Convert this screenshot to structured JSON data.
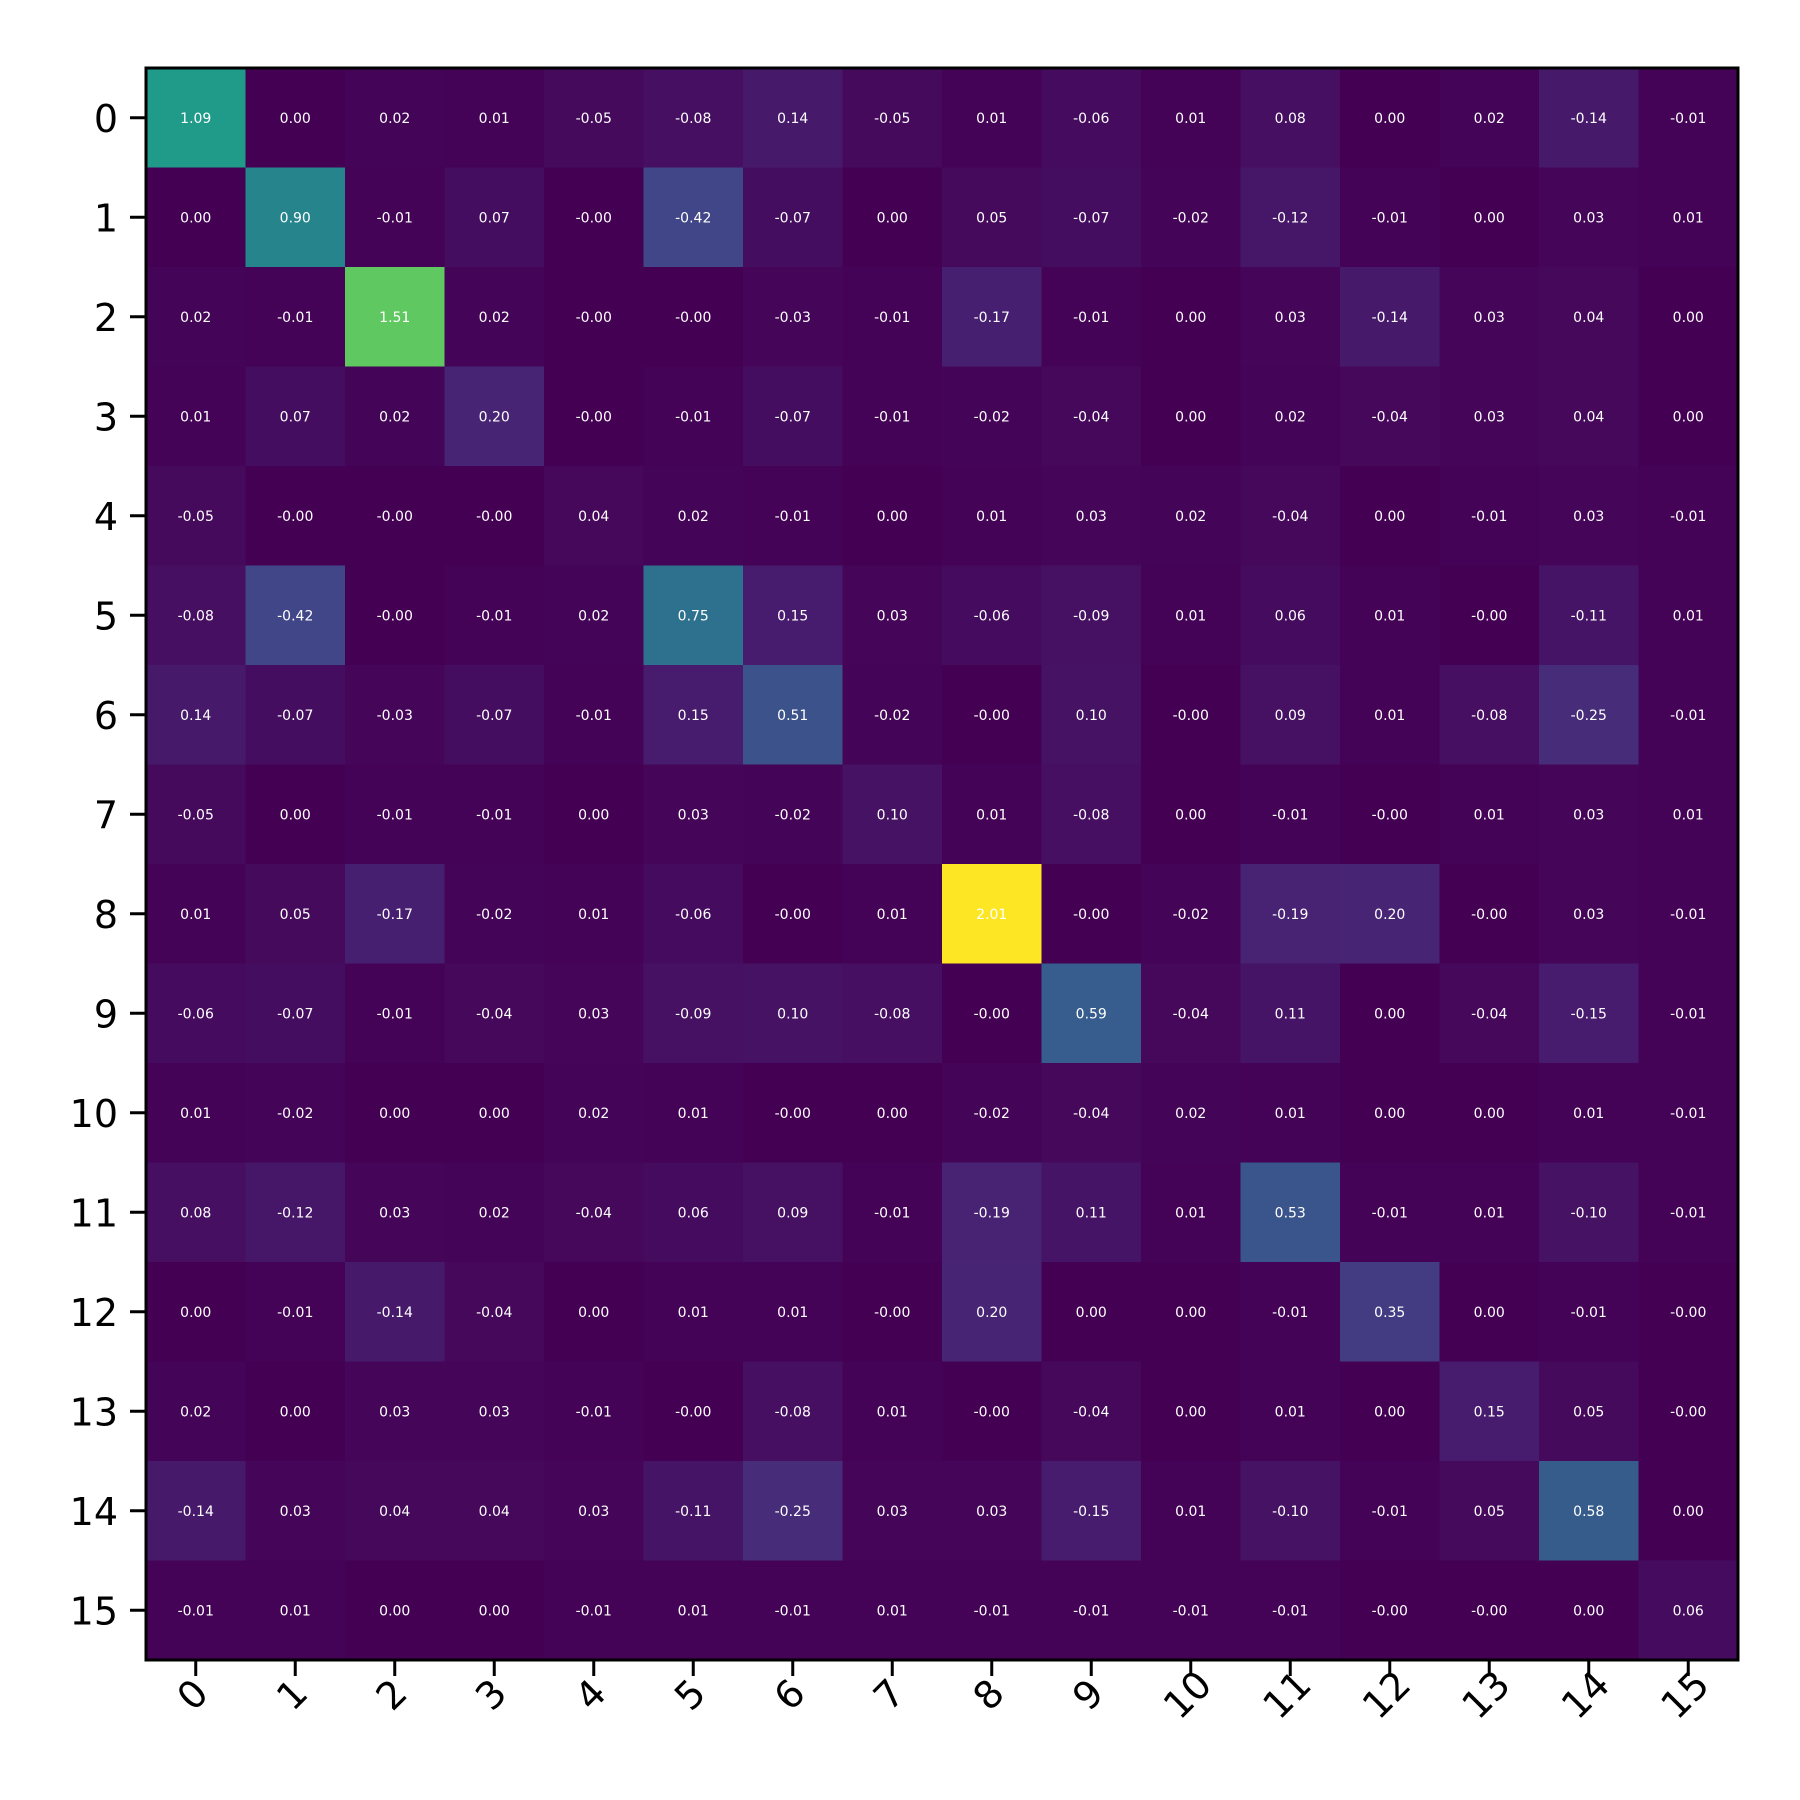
{
  "chart_data": {
    "type": "heatmap",
    "title": "",
    "xlabel": "",
    "ylabel": "",
    "x_tick_labels": [
      "0",
      "1",
      "2",
      "3",
      "4",
      "5",
      "6",
      "7",
      "8",
      "9",
      "10",
      "11",
      "12",
      "13",
      "14",
      "15"
    ],
    "y_tick_labels": [
      "0",
      "1",
      "2",
      "3",
      "4",
      "5",
      "6",
      "7",
      "8",
      "9",
      "10",
      "11",
      "12",
      "13",
      "14",
      "15"
    ],
    "colormap": "viridis",
    "value_range": [
      -0.42,
      2.01
    ],
    "grid": false,
    "colorbar": false,
    "values": [
      [
        1.09,
        0.0,
        0.02,
        0.01,
        -0.05,
        -0.08,
        0.14,
        -0.05,
        0.01,
        -0.06,
        0.01,
        0.08,
        0.0,
        0.02,
        -0.14,
        -0.01
      ],
      [
        0.0,
        0.9,
        -0.01,
        0.07,
        -0.0,
        -0.42,
        -0.07,
        0.0,
        0.05,
        -0.07,
        -0.02,
        -0.12,
        -0.01,
        0.0,
        0.03,
        0.01
      ],
      [
        0.02,
        -0.01,
        1.51,
        0.02,
        -0.0,
        -0.0,
        -0.03,
        -0.01,
        -0.17,
        -0.01,
        0.0,
        0.03,
        -0.14,
        0.03,
        0.04,
        0.0
      ],
      [
        0.01,
        0.07,
        0.02,
        0.2,
        -0.0,
        -0.01,
        -0.07,
        -0.01,
        -0.02,
        -0.04,
        0.0,
        0.02,
        -0.04,
        0.03,
        0.04,
        0.0
      ],
      [
        -0.05,
        -0.0,
        -0.0,
        -0.0,
        0.04,
        0.02,
        -0.01,
        0.0,
        0.01,
        0.03,
        0.02,
        -0.04,
        0.0,
        -0.01,
        0.03,
        -0.01
      ],
      [
        -0.08,
        -0.42,
        -0.0,
        -0.01,
        0.02,
        0.75,
        0.15,
        0.03,
        -0.06,
        -0.09,
        0.01,
        0.06,
        0.01,
        -0.0,
        -0.11,
        0.01
      ],
      [
        0.14,
        -0.07,
        -0.03,
        -0.07,
        -0.01,
        0.15,
        0.51,
        -0.02,
        -0.0,
        0.1,
        -0.0,
        0.09,
        0.01,
        -0.08,
        -0.25,
        -0.01
      ],
      [
        -0.05,
        0.0,
        -0.01,
        -0.01,
        0.0,
        0.03,
        -0.02,
        0.1,
        0.01,
        -0.08,
        0.0,
        -0.01,
        -0.0,
        0.01,
        0.03,
        0.01
      ],
      [
        0.01,
        0.05,
        -0.17,
        -0.02,
        0.01,
        -0.06,
        -0.0,
        0.01,
        2.01,
        -0.0,
        -0.02,
        -0.19,
        0.2,
        -0.0,
        0.03,
        -0.01
      ],
      [
        -0.06,
        -0.07,
        -0.01,
        -0.04,
        0.03,
        -0.09,
        0.1,
        -0.08,
        -0.0,
        0.59,
        -0.04,
        0.11,
        0.0,
        -0.04,
        -0.15,
        -0.01
      ],
      [
        0.01,
        -0.02,
        0.0,
        0.0,
        0.02,
        0.01,
        -0.0,
        0.0,
        -0.02,
        -0.04,
        0.02,
        0.01,
        0.0,
        0.0,
        0.01,
        -0.01
      ],
      [
        0.08,
        -0.12,
        0.03,
        0.02,
        -0.04,
        0.06,
        0.09,
        -0.01,
        -0.19,
        0.11,
        0.01,
        0.53,
        -0.01,
        0.01,
        -0.1,
        -0.01
      ],
      [
        0.0,
        -0.01,
        -0.14,
        -0.04,
        0.0,
        0.01,
        0.01,
        -0.0,
        0.2,
        0.0,
        0.0,
        -0.01,
        0.35,
        0.0,
        -0.01,
        -0.0
      ],
      [
        0.02,
        0.0,
        0.03,
        0.03,
        -0.01,
        -0.0,
        -0.08,
        0.01,
        -0.0,
        -0.04,
        0.0,
        0.01,
        0.0,
        0.15,
        0.05,
        -0.0
      ],
      [
        -0.14,
        0.03,
        0.04,
        0.04,
        0.03,
        -0.11,
        -0.25,
        0.03,
        0.03,
        -0.15,
        0.01,
        -0.1,
        -0.01,
        0.05,
        0.58,
        0.0
      ],
      [
        -0.01,
        0.01,
        0.0,
        0.0,
        -0.01,
        0.01,
        -0.01,
        0.01,
        -0.01,
        -0.01,
        -0.01,
        -0.01,
        -0.0,
        -0.0,
        0.0,
        0.06
      ]
    ]
  }
}
